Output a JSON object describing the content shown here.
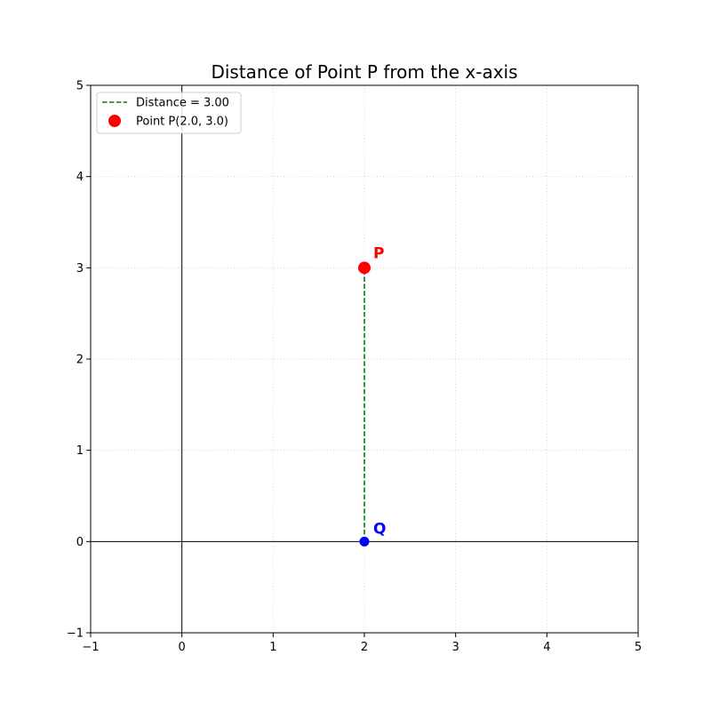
{
  "chart_data": {
    "type": "scatter",
    "title": "Distance of Point P from the x-axis",
    "xlabel": "",
    "ylabel": "",
    "xlim": [
      -1,
      5
    ],
    "ylim": [
      -1,
      5
    ],
    "xticks": [
      -1,
      0,
      1,
      2,
      3,
      4,
      5
    ],
    "yticks": [
      -1,
      0,
      1,
      2,
      3,
      4,
      5
    ],
    "xtick_labels": [
      "−1",
      "0",
      "1",
      "2",
      "3",
      "4",
      "5"
    ],
    "ytick_labels": [
      "−1",
      "0",
      "1",
      "2",
      "3",
      "4",
      "5"
    ],
    "grid": true,
    "legend_position": "top-left",
    "axes_lines": {
      "x_axis_at_y": 0,
      "y_axis_at_x": 0,
      "color": "#000000"
    },
    "series": [
      {
        "name": "Distance = 3.00",
        "kind": "line",
        "style": "dashed",
        "color": "#008000",
        "points": [
          {
            "x": 2.0,
            "y": 0.0
          },
          {
            "x": 2.0,
            "y": 3.0
          }
        ]
      },
      {
        "name": "Point P(2.0, 3.0)",
        "kind": "point",
        "color": "#ff0000",
        "label": "P",
        "points": [
          {
            "x": 2.0,
            "y": 3.0
          }
        ]
      },
      {
        "kind": "point",
        "color": "#0000ff",
        "label": "Q",
        "points": [
          {
            "x": 2.0,
            "y": 0.0
          }
        ]
      }
    ]
  }
}
